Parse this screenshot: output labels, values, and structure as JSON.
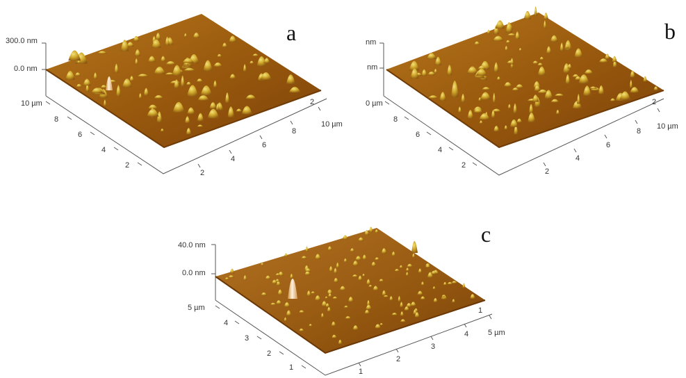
{
  "figure": {
    "panels": [
      {
        "id": "a",
        "letter": "a",
        "z_labels": [
          "300.0 nm",
          "0.0 nm"
        ],
        "left_axis_ticks": [
          "10 µm",
          "8",
          "6",
          "4",
          "2"
        ],
        "front_axis_ticks": [
          "2",
          "4",
          "6",
          "8",
          "10 µm"
        ],
        "back_right_tick": "2",
        "surface_color": "#a0620f",
        "peak_color": "#e0c63a"
      },
      {
        "id": "b",
        "letter": "b",
        "z_labels": [
          "nm",
          "nm"
        ],
        "left_axis_ticks": [
          "0 µm",
          "8",
          "6",
          "4",
          "2"
        ],
        "front_axis_ticks": [
          "2",
          "4",
          "6",
          "8",
          "10 µm"
        ],
        "back_right_tick": "2",
        "surface_color": "#a0620f",
        "peak_color": "#e0c63a"
      },
      {
        "id": "c",
        "letter": "c",
        "z_labels": [
          "40.0 nm",
          "0.0 nm"
        ],
        "left_axis_ticks": [
          "5 µm",
          "4",
          "3",
          "2",
          "1"
        ],
        "front_axis_ticks": [
          "1",
          "2",
          "3",
          "4",
          "5 µm"
        ],
        "back_right_tick": "1",
        "surface_color": "#9c5d0c",
        "peak_color": "#d9b53a"
      }
    ]
  }
}
